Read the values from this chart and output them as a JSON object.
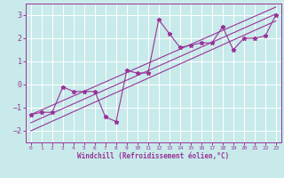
{
  "title": "",
  "xlabel": "Windchill (Refroidissement éolien,°C)",
  "ylabel": "",
  "bg_color": "#c8eaea",
  "line_color": "#993399",
  "grid_color": "#ffffff",
  "x_ticks": [
    0,
    1,
    2,
    3,
    4,
    5,
    6,
    7,
    8,
    9,
    10,
    11,
    12,
    13,
    14,
    15,
    16,
    17,
    18,
    19,
    20,
    21,
    22,
    23
  ],
  "y_ticks": [
    -2,
    -1,
    0,
    1,
    2,
    3
  ],
  "ylim": [
    -2.5,
    3.5
  ],
  "xlim": [
    -0.5,
    23.5
  ],
  "data_y": [
    -1.3,
    -1.2,
    -1.2,
    -0.1,
    -0.3,
    -0.3,
    -0.3,
    -1.4,
    -1.6,
    0.6,
    0.5,
    0.5,
    2.8,
    2.2,
    1.6,
    1.7,
    1.8,
    1.8,
    2.5,
    1.5,
    2.0,
    2.0,
    2.1,
    3.0
  ],
  "reg_line": [
    -1.65,
    3.05
  ],
  "reg_line_upper": [
    -1.3,
    3.35
  ],
  "reg_line_lower": [
    -2.0,
    2.75
  ]
}
